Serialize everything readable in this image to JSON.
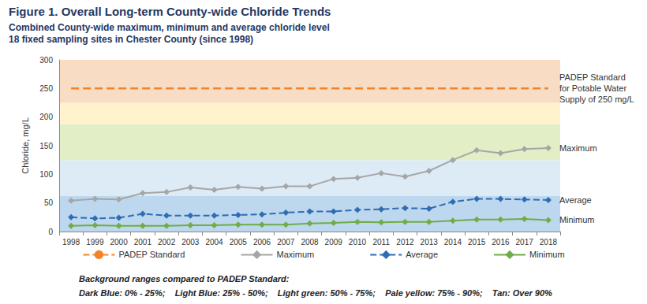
{
  "chart_data": {
    "type": "line",
    "title": "Figure 1. Overall Long-term County-wide Chloride Trends",
    "subtitle": [
      "Combined County-wide maximum, minimum and average chloride level",
      "18 fixed sampling sites in Chester County (since 1998)"
    ],
    "y_label": "Chloride, mg/L",
    "categories": [
      "1998",
      "1999",
      "2000",
      "2001",
      "2002",
      "2003",
      "2004",
      "2005",
      "2006",
      "2007",
      "2008",
      "2009",
      "2010",
      "2011",
      "2012",
      "2013",
      "2014",
      "2015",
      "2016",
      "2017",
      "2018"
    ],
    "series": [
      {
        "name": "PADEP Standard",
        "color": "#f4822a",
        "marker": "none",
        "line_style": "dashed",
        "values": [
          250,
          250,
          250,
          250,
          250,
          250,
          250,
          250,
          250,
          250,
          250,
          250,
          250,
          250,
          250,
          250,
          250,
          250,
          250,
          250,
          250
        ]
      },
      {
        "name": "Maximum",
        "color": "#a6a6a6",
        "marker": "diamond",
        "line_style": "solid",
        "values": [
          54,
          57,
          56,
          67,
          69,
          77,
          73,
          78,
          75,
          79,
          79,
          92,
          94,
          102,
          96,
          106,
          125,
          142,
          137,
          144,
          146
        ]
      },
      {
        "name": "Average",
        "color": "#2e6db4",
        "marker": "diamond",
        "line_style": "dashed",
        "values": [
          25,
          23,
          24,
          31,
          28,
          28,
          28,
          29,
          30,
          33,
          35,
          35,
          38,
          39,
          41,
          40,
          52,
          57,
          57,
          56,
          55
        ]
      },
      {
        "name": "Minimum",
        "color": "#70ad47",
        "marker": "diamond",
        "line_style": "solid",
        "values": [
          10,
          11,
          10,
          10,
          10,
          11,
          11,
          12,
          12,
          12,
          14,
          15,
          17,
          16,
          17,
          17,
          19,
          21,
          21,
          22,
          20
        ]
      }
    ],
    "annotations": [
      {
        "series": "PADEP Standard",
        "text": "PADEP Standard for Potable Water Supply of 250 mg/L"
      },
      {
        "series": "Maximum",
        "text": "Maximum"
      },
      {
        "series": "Average",
        "text": "Average"
      },
      {
        "series": "Minimum",
        "text": "Minimum"
      }
    ],
    "bands": [
      {
        "from": 0,
        "to": 62.5,
        "color": "#bdd7ee",
        "label": "Dark Blue: 0% - 25%;"
      },
      {
        "from": 62.5,
        "to": 125,
        "color": "#ddebf7",
        "label": "Light Blue: 25% - 50%;"
      },
      {
        "from": 125,
        "to": 187.5,
        "color": "#e2efc6",
        "label": "Light green: 50% - 75%;"
      },
      {
        "from": 187.5,
        "to": 225,
        "color": "#fff2cc",
        "label": "Pale yellow: 75% - 90%;"
      },
      {
        "from": 225,
        "to": 300,
        "color": "#f8ddc4",
        "label": "Tan: Over 90%"
      }
    ],
    "bands_title": "Background ranges compared to PADEP Standard:",
    "ylim": [
      0,
      300
    ],
    "yticks": [
      0,
      50,
      100,
      150,
      200,
      250,
      300
    ],
    "grid": true,
    "legend": "bottom"
  }
}
